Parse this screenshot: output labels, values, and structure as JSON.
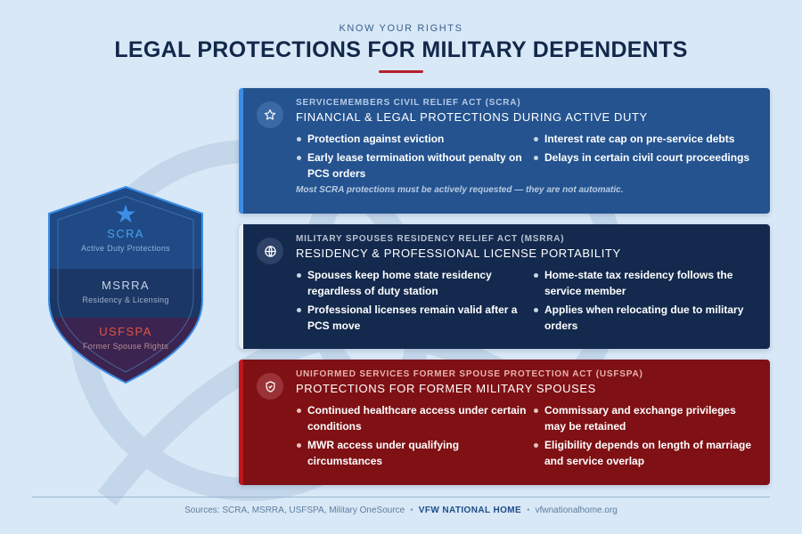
{
  "header": {
    "eyebrow": "KNOW YOUR RIGHTS",
    "title": "LEGAL PROTECTIONS FOR MILITARY DEPENDENTS"
  },
  "shield": {
    "tiers": [
      {
        "name": "SCRA",
        "sub": "Active Duty Protections"
      },
      {
        "name": "MSRRA",
        "sub": "Residency & Licensing"
      },
      {
        "name": "USFSPA",
        "sub": "Former Spouse Rights"
      }
    ]
  },
  "cards": [
    {
      "label": "SERVICEMEMBERS CIVIL RELIEF ACT (SCRA)",
      "heading": "FINANCIAL & LEGAL PROTECTIONS DURING ACTIVE DUTY",
      "icon": "star-icon",
      "left": [
        "Protection against eviction",
        "Early lease termination without penalty on PCS orders"
      ],
      "right": [
        "Interest rate cap on pre-service debts",
        "Delays in certain civil court proceedings"
      ],
      "note": "Most SCRA protections must be actively requested — they are not automatic."
    },
    {
      "label": "MILITARY SPOUSES RESIDENCY RELIEF ACT (MSRRA)",
      "heading": "RESIDENCY & PROFESSIONAL LICENSE PORTABILITY",
      "icon": "globe-icon",
      "left": [
        "Spouses keep home state residency regardless of duty station",
        "Professional licenses remain valid after a PCS move"
      ],
      "right": [
        "Home-state tax residency follows the service member",
        "Applies when relocating due to military orders"
      ]
    },
    {
      "label": "UNIFORMED SERVICES FORMER SPOUSE PROTECTION ACT (USFSPA)",
      "heading": "PROTECTIONS FOR FORMER MILITARY SPOUSES",
      "icon": "shield-check-icon",
      "left": [
        "Continued healthcare access under certain conditions",
        "MWR access under qualifying circumstances"
      ],
      "right": [
        "Commissary and exchange privileges may be retained",
        "Eligibility depends on length of marriage and service overlap"
      ]
    }
  ],
  "footer": {
    "sources": "Sources: SCRA, MSRRA, USFSPA, Military OneSource",
    "brand": "VFW NATIONAL HOME",
    "url": "vfwnationalhome.org"
  },
  "colors": {
    "background": "#d8e8f7",
    "title": "#12284a",
    "accent_red": "#b3202a",
    "scra_card": "#24538f",
    "msrra_card": "#13294d",
    "usfspa_card": "#7f1014"
  }
}
